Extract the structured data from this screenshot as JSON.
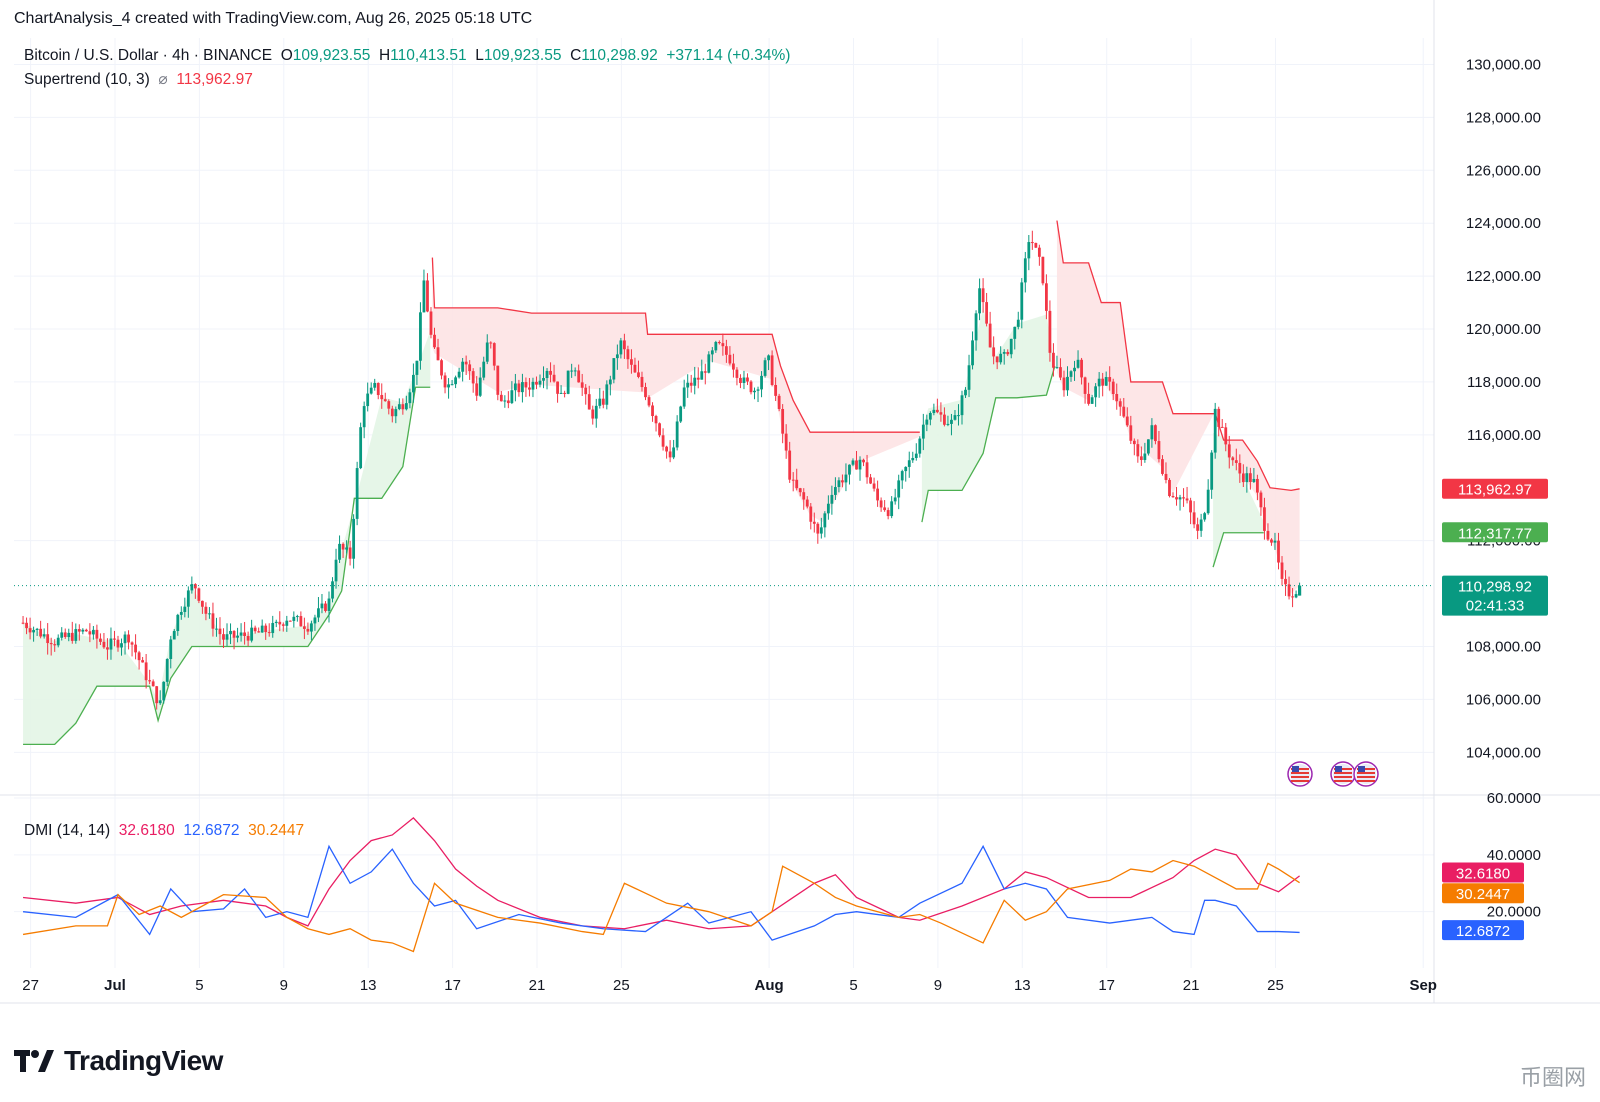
{
  "header": {
    "author": "ChartAnalysis_4 created with TradingView.com, Aug 26, 2025 05:18 UTC"
  },
  "legend": {
    "symbol": "Bitcoin / U.S. Dollar · 4h · BINANCE",
    "o_label": "O",
    "o_value": "109,923.55",
    "h_label": "H",
    "h_value": "110,413.51",
    "l_label": "L",
    "l_value": "109,923.55",
    "c_label": "C",
    "c_value": "110,298.92",
    "change": "+371.14 (+0.34%)",
    "supertrend_label": "Supertrend (10, 3)",
    "supertrend_sym": "⌀",
    "supertrend_value": "113,962.97"
  },
  "dmi_legend": {
    "label": "DMI (14, 14)",
    "plus_di": "32.6180",
    "minus_di": "12.6872",
    "adx": "30.2447"
  },
  "price_badges": {
    "supertrend_up": "113,962.97",
    "supertrend_down": "112,317.77",
    "last_price": "110,298.92",
    "countdown": "02:41:33"
  },
  "dmi_badges": {
    "plus_di": "32.6180",
    "adx": "30.2447",
    "minus_di": "12.6872"
  },
  "colors": {
    "up": "#089981",
    "down": "#f23645",
    "st_fill_up": "#e3f5e5",
    "st_fill_down": "#fde3e4",
    "st_line_up": "#4caf50",
    "st_line_down": "#f23645",
    "plus_di": "#e91e63",
    "minus_di": "#2962ff",
    "adx": "#f57c00",
    "grid": "#f0f3fa"
  },
  "brand": {
    "name": "TradingView"
  },
  "watermark": "币圈网",
  "chart_data": {
    "type": "candlestick",
    "symbol": "BTCUSD",
    "interval": "4h",
    "price_axis": {
      "ylim": [
        102500,
        131000
      ],
      "ticks": [
        "130,000.00",
        "128,000.00",
        "126,000.00",
        "124,000.00",
        "122,000.00",
        "120,000.00",
        "118,000.00",
        "116,000.00",
        "112,000.00",
        "108,000.00",
        "106,000.00",
        "104,000.00"
      ]
    },
    "dmi_axis": {
      "ylim": [
        3,
        60
      ],
      "ticks": [
        "60.0000",
        "40.0000",
        "20.0000"
      ]
    },
    "x_axis": {
      "labels": [
        "27",
        "Jul",
        "5",
        "9",
        "13",
        "17",
        "21",
        "25",
        "Aug",
        "5",
        "9",
        "13",
        "17",
        "21",
        "25",
        "Sep"
      ],
      "bold": [
        "Jul",
        "Aug",
        "Sep"
      ],
      "day_index": [
        -4,
        0,
        4,
        8,
        12,
        16,
        20,
        24,
        31,
        35,
        39,
        43,
        47,
        51,
        55,
        62
      ]
    },
    "price_path_days": [
      [
        -4.5,
        108900
      ],
      [
        -3,
        108200
      ],
      [
        -1.5,
        108600
      ],
      [
        -0.5,
        108000
      ],
      [
        0.5,
        108400
      ],
      [
        1.5,
        106600
      ],
      [
        2,
        105800
      ],
      [
        2.5,
        108400
      ],
      [
        3,
        109500
      ],
      [
        3.6,
        110400
      ],
      [
        4.2,
        109200
      ],
      [
        5,
        108300
      ],
      [
        5.8,
        108400
      ],
      [
        6.6,
        108500
      ],
      [
        7.4,
        108700
      ],
      [
        8,
        109100
      ],
      [
        9,
        108800
      ],
      [
        10,
        109700
      ],
      [
        10.4,
        111800
      ],
      [
        11,
        111400
      ],
      [
        11.6,
        117200
      ],
      [
        12.2,
        117800
      ],
      [
        13,
        116800
      ],
      [
        13.6,
        117300
      ],
      [
        14.1,
        118400
      ],
      [
        14.5,
        121800
      ],
      [
        14.9,
        119300
      ],
      [
        15.6,
        117800
      ],
      [
        16.4,
        118900
      ],
      [
        17,
        117600
      ],
      [
        17.6,
        119700
      ],
      [
        18.1,
        117100
      ],
      [
        18.8,
        117700
      ],
      [
        19.6,
        117900
      ],
      [
        20.4,
        118600
      ],
      [
        21,
        117400
      ],
      [
        21.6,
        118800
      ],
      [
        22.4,
        116700
      ],
      [
        23,
        117300
      ],
      [
        23.8,
        119500
      ],
      [
        24.4,
        118400
      ],
      [
        25,
        117600
      ],
      [
        25.6,
        116300
      ],
      [
        26.2,
        114900
      ],
      [
        26.8,
        117700
      ],
      [
        27.6,
        118200
      ],
      [
        28.4,
        119400
      ],
      [
        29,
        118900
      ],
      [
        29.6,
        118000
      ],
      [
        30.2,
        117700
      ],
      [
        30.8,
        118900
      ],
      [
        31.4,
        116500
      ],
      [
        31.9,
        114200
      ],
      [
        32.6,
        113400
      ],
      [
        33.2,
        112100
      ],
      [
        33.8,
        113900
      ],
      [
        34.6,
        114600
      ],
      [
        35.2,
        115100
      ],
      [
        36,
        113500
      ],
      [
        36.6,
        113100
      ],
      [
        37.2,
        114500
      ],
      [
        37.8,
        115400
      ],
      [
        38.4,
        117000
      ],
      [
        39,
        116700
      ],
      [
        39.6,
        116400
      ],
      [
        40.2,
        117800
      ],
      [
        40.8,
        121700
      ],
      [
        41.4,
        119000
      ],
      [
        42,
        118900
      ],
      [
        42.6,
        120200
      ],
      [
        43.2,
        123600
      ],
      [
        43.8,
        122200
      ],
      [
        44.2,
        118900
      ],
      [
        44.8,
        117800
      ],
      [
        45.4,
        118900
      ],
      [
        46,
        117300
      ],
      [
        46.6,
        118100
      ],
      [
        47.2,
        117700
      ],
      [
        47.8,
        116300
      ],
      [
        48.4,
        114900
      ],
      [
        49,
        116200
      ],
      [
        49.8,
        113900
      ],
      [
        50.6,
        113500
      ],
      [
        51.2,
        112200
      ],
      [
        51.6,
        113600
      ],
      [
        52,
        116900
      ],
      [
        52.6,
        115400
      ],
      [
        53.2,
        114500
      ],
      [
        53.8,
        114300
      ],
      [
        54.4,
        112400
      ],
      [
        54.8,
        111900
      ],
      [
        55.2,
        110200
      ],
      [
        55.6,
        110000
      ],
      [
        56,
        110300
      ]
    ],
    "ohlc_last": {
      "o": 109923.55,
      "h": 110413.51,
      "l": 109923.55,
      "c": 110298.92
    },
    "supertrend_segments": [
      {
        "trend": "up",
        "points": [
          [
            -4.5,
            104300
          ],
          [
            -3,
            104300
          ],
          [
            -2,
            105100
          ],
          [
            -1,
            106500
          ],
          [
            0,
            106500
          ],
          [
            1.5,
            106500
          ],
          [
            1.9,
            105200
          ],
          [
            2.5,
            106800
          ],
          [
            3.5,
            108000
          ],
          [
            5,
            108000
          ],
          [
            7,
            108000
          ],
          [
            9,
            108000
          ],
          [
            10,
            109200
          ],
          [
            10.6,
            110100
          ],
          [
            11.2,
            113600
          ],
          [
            12.5,
            113600
          ],
          [
            13.5,
            114800
          ],
          [
            14.1,
            117800
          ],
          [
            14.8,
            117800
          ]
        ]
      },
      {
        "trend": "down",
        "points": [
          [
            14.9,
            122700
          ],
          [
            15,
            120800
          ],
          [
            18,
            120800
          ],
          [
            19.6,
            120600
          ],
          [
            25,
            120600
          ],
          [
            25.1,
            119800
          ],
          [
            28,
            119800
          ],
          [
            31,
            119800
          ],
          [
            31.4,
            118600
          ],
          [
            32,
            117300
          ],
          [
            32.8,
            116100
          ],
          [
            33.4,
            116100
          ],
          [
            35,
            116100
          ],
          [
            38,
            116100
          ]
        ]
      },
      {
        "trend": "up",
        "points": [
          [
            38.1,
            112700
          ],
          [
            38.4,
            113900
          ],
          [
            40,
            113900
          ],
          [
            41,
            115300
          ],
          [
            41.6,
            117400
          ],
          [
            42.6,
            117400
          ],
          [
            44,
            117500
          ],
          [
            44.4,
            118600
          ]
        ]
      },
      {
        "trend": "down",
        "points": [
          [
            44.5,
            124100
          ],
          [
            44.8,
            122500
          ],
          [
            46,
            122500
          ],
          [
            46.6,
            121000
          ],
          [
            47.5,
            121000
          ],
          [
            48,
            118000
          ],
          [
            49.5,
            118000
          ],
          [
            50,
            116800
          ],
          [
            52,
            116800
          ],
          [
            52.4,
            115800
          ],
          [
            53.3,
            115800
          ],
          [
            54,
            115000
          ],
          [
            54.6,
            114000
          ],
          [
            55.6,
            113900
          ],
          [
            56,
            113960
          ]
        ]
      },
      {
        "trend": "up",
        "points": [
          [
            51.9,
            111000
          ],
          [
            52.4,
            112300
          ],
          [
            54.3,
            112300
          ]
        ]
      }
    ],
    "dmi_series": [
      {
        "name": "+DI",
        "values_days": [
          [
            -4.5,
            25
          ],
          [
            -2,
            23
          ],
          [
            0,
            25
          ],
          [
            1.5,
            19
          ],
          [
            3,
            22
          ],
          [
            5,
            24
          ],
          [
            7,
            22
          ],
          [
            8,
            18
          ],
          [
            9,
            15
          ],
          [
            10,
            28
          ],
          [
            11,
            38
          ],
          [
            12,
            45
          ],
          [
            13,
            47
          ],
          [
            14,
            53
          ],
          [
            15,
            45
          ],
          [
            16,
            35
          ],
          [
            17,
            29
          ],
          [
            18,
            24
          ],
          [
            20,
            18
          ],
          [
            22,
            15
          ],
          [
            24,
            14
          ],
          [
            26,
            17
          ],
          [
            28,
            14
          ],
          [
            30,
            15
          ],
          [
            32,
            25
          ],
          [
            33,
            30
          ],
          [
            34,
            33
          ],
          [
            35,
            25
          ],
          [
            37,
            18
          ],
          [
            38,
            17
          ],
          [
            40,
            22
          ],
          [
            42,
            28
          ],
          [
            43,
            34
          ],
          [
            44,
            32
          ],
          [
            46,
            25
          ],
          [
            48,
            25
          ],
          [
            50,
            32
          ],
          [
            51,
            38
          ],
          [
            52,
            42
          ],
          [
            53,
            40
          ],
          [
            54,
            30
          ],
          [
            55,
            27
          ],
          [
            56,
            32.6
          ]
        ]
      },
      {
        "name": "-DI",
        "values_days": [
          [
            -4.5,
            20
          ],
          [
            -2,
            18
          ],
          [
            0,
            26
          ],
          [
            1.5,
            12
          ],
          [
            2.5,
            28
          ],
          [
            3.5,
            20
          ],
          [
            5,
            21
          ],
          [
            6,
            28
          ],
          [
            7,
            18
          ],
          [
            8,
            20
          ],
          [
            9,
            18
          ],
          [
            10,
            43
          ],
          [
            11,
            30
          ],
          [
            12,
            34
          ],
          [
            13,
            42
          ],
          [
            14,
            30
          ],
          [
            15,
            22
          ],
          [
            16,
            24
          ],
          [
            17,
            14
          ],
          [
            19,
            19
          ],
          [
            21,
            16
          ],
          [
            23,
            14
          ],
          [
            25,
            13
          ],
          [
            27,
            23
          ],
          [
            28,
            16
          ],
          [
            30,
            20
          ],
          [
            31,
            10
          ],
          [
            33,
            15
          ],
          [
            34,
            19
          ],
          [
            35,
            20
          ],
          [
            37,
            18
          ],
          [
            38,
            23
          ],
          [
            40,
            30
          ],
          [
            41,
            43
          ],
          [
            42,
            28
          ],
          [
            43,
            30
          ],
          [
            44,
            28
          ],
          [
            45,
            18
          ],
          [
            47,
            16
          ],
          [
            49,
            18
          ],
          [
            50,
            13
          ],
          [
            51,
            12
          ],
          [
            51.5,
            24
          ],
          [
            52,
            24
          ],
          [
            53,
            22
          ],
          [
            54,
            13
          ],
          [
            55,
            13
          ],
          [
            56,
            12.7
          ]
        ]
      },
      {
        "name": "ADX",
        "values_days": [
          [
            -4.5,
            12
          ],
          [
            -2,
            15
          ],
          [
            -0.5,
            15
          ],
          [
            0,
            26
          ],
          [
            1,
            19
          ],
          [
            2,
            22
          ],
          [
            3,
            18
          ],
          [
            5,
            26
          ],
          [
            7,
            25
          ],
          [
            8,
            18
          ],
          [
            9,
            14
          ],
          [
            10,
            12
          ],
          [
            11,
            14
          ],
          [
            12,
            10
          ],
          [
            13,
            9
          ],
          [
            14,
            6
          ],
          [
            15,
            30
          ],
          [
            16,
            23
          ],
          [
            18,
            18
          ],
          [
            20,
            16
          ],
          [
            22,
            13
          ],
          [
            23,
            12
          ],
          [
            24,
            30
          ],
          [
            26,
            23
          ],
          [
            28,
            20
          ],
          [
            30,
            15
          ],
          [
            31,
            20
          ],
          [
            31.5,
            36
          ],
          [
            33,
            30
          ],
          [
            34,
            25
          ],
          [
            35,
            22
          ],
          [
            37,
            18
          ],
          [
            38,
            19
          ],
          [
            39,
            16
          ],
          [
            41,
            9
          ],
          [
            42,
            24
          ],
          [
            43,
            17
          ],
          [
            44,
            20
          ],
          [
            45,
            28
          ],
          [
            47,
            31
          ],
          [
            48,
            35
          ],
          [
            49,
            34
          ],
          [
            50,
            38
          ],
          [
            51,
            36
          ],
          [
            52,
            32
          ],
          [
            53,
            28
          ],
          [
            54,
            28
          ],
          [
            54.5,
            37
          ],
          [
            55,
            35
          ],
          [
            56,
            30.2
          ]
        ]
      }
    ]
  }
}
